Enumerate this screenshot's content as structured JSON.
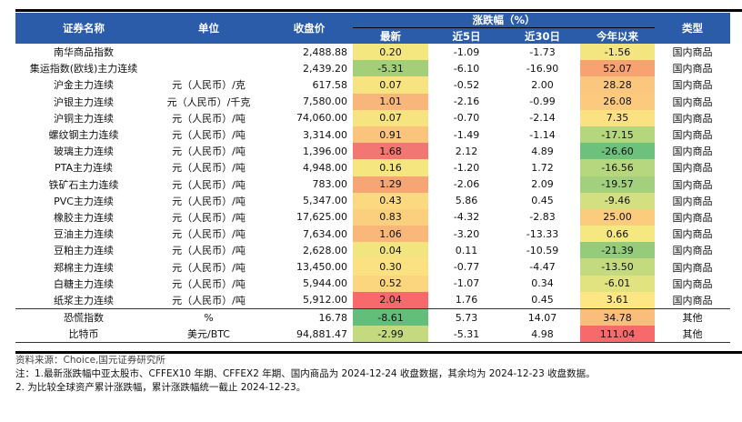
{
  "header": {
    "name": "证券名称",
    "unit": "单位",
    "close": "收盘价",
    "change_group": "涨跌幅（%）",
    "latest": "最新",
    "d5": "近5日",
    "d30": "近30日",
    "ytd": "今年以来",
    "type": "类型"
  },
  "rows": [
    {
      "name": "南华商品指数",
      "unit": "",
      "close": "2,488.88",
      "latest": "0.20",
      "latest_color": "#f5e77f",
      "d5": "-1.09",
      "d30": "-1.73",
      "ytd": "-1.56",
      "ytd_color": "#f3e680",
      "type": "国内商品"
    },
    {
      "name": "集运指数(欧线)主力连续",
      "unit": "",
      "close": "2,439.20",
      "latest": "-5.31",
      "latest_color": "#a3cf78",
      "d5": "-6.10",
      "d30": "-16.90",
      "ytd": "52.07",
      "ytd_color": "#f8a272",
      "type": "国内商品"
    },
    {
      "name": "沪金主力连续",
      "unit": "元（人民币）/克",
      "close": "617.58",
      "latest": "0.07",
      "latest_color": "#f7e480",
      "d5": "-0.52",
      "d30": "2.00",
      "ytd": "28.28",
      "ytd_color": "#fbc77e",
      "type": "国内商品"
    },
    {
      "name": "沪银主力连续",
      "unit": "元（人民币）/千克",
      "close": "7,580.00",
      "latest": "1.01",
      "latest_color": "#f9b67a",
      "d5": "-2.16",
      "d30": "-0.99",
      "ytd": "26.08",
      "ytd_color": "#fbca7e",
      "type": "国内商品"
    },
    {
      "name": "沪铜主力连续",
      "unit": "元（人民币）/吨",
      "close": "74,060.00",
      "latest": "0.07",
      "latest_color": "#f7e480",
      "d5": "-0.70",
      "d30": "-2.14",
      "ytd": "7.35",
      "ytd_color": "#fbe182",
      "type": "国内商品"
    },
    {
      "name": "螺纹钢主力连续",
      "unit": "元（人民币）/吨",
      "close": "3,314.00",
      "latest": "0.91",
      "latest_color": "#fac47c",
      "d5": "-1.49",
      "d30": "-1.14",
      "ytd": "-17.15",
      "ytd_color": "#b4d67d",
      "type": "国内商品"
    },
    {
      "name": "玻璃主力连续",
      "unit": "元（人民币）/吨",
      "close": "1,396.00",
      "latest": "1.68",
      "latest_color": "#f27671",
      "d5": "2.12",
      "d30": "4.89",
      "ytd": "-26.60",
      "ytd_color": "#6ec17c",
      "type": "国内商品"
    },
    {
      "name": "PTA主力连续",
      "unit": "元（人民币）/吨",
      "close": "4,948.00",
      "latest": "0.16",
      "latest_color": "#f6e67f",
      "d5": "-1.20",
      "d30": "1.72",
      "ytd": "-16.56",
      "ytd_color": "#b7d77e",
      "type": "国内商品"
    },
    {
      "name": "铁矿石主力连续",
      "unit": "元（人民币）/吨",
      "close": "783.00",
      "latest": "1.29",
      "latest_color": "#f8a576",
      "d5": "-2.06",
      "d30": "2.09",
      "ytd": "-19.57",
      "ytd_color": "#a2d07c",
      "type": "国内商品"
    },
    {
      "name": "PVC主力连续",
      "unit": "元（人民币）/吨",
      "close": "5,347.00",
      "latest": "0.43",
      "latest_color": "#fbd981",
      "d5": "5.86",
      "d30": "0.45",
      "ytd": "-9.46",
      "ytd_color": "#d3df81",
      "type": "国内商品"
    },
    {
      "name": "橡胶主力连续",
      "unit": "元（人民币）/吨",
      "close": "17,625.00",
      "latest": "0.83",
      "latest_color": "#fad07e",
      "d5": "-4.32",
      "d30": "-2.83",
      "ytd": "25.00",
      "ytd_color": "#fbcb7e",
      "type": "国内商品"
    },
    {
      "name": "豆油主力连续",
      "unit": "元（人民币）/吨",
      "close": "7,634.00",
      "latest": "1.06",
      "latest_color": "#f9b87a",
      "d5": "-3.20",
      "d30": "-13.33",
      "ytd": "0.66",
      "ytd_color": "#f6e881",
      "type": "国内商品"
    },
    {
      "name": "豆粕主力连续",
      "unit": "元（人民币）/吨",
      "close": "2,628.00",
      "latest": "0.04",
      "latest_color": "#f2e57f",
      "d5": "0.11",
      "d30": "-10.59",
      "ytd": "-21.39",
      "ytd_color": "#94cc7c",
      "type": "国内商品"
    },
    {
      "name": "郑棉主力连续",
      "unit": "元（人民币）/吨",
      "close": "13,450.00",
      "latest": "0.30",
      "latest_color": "#fbe181",
      "d5": "-0.77",
      "d30": "-4.47",
      "ytd": "-13.50",
      "ytd_color": "#c3da7f",
      "type": "国内商品"
    },
    {
      "name": "白糖主力连续",
      "unit": "元（人民币）/吨",
      "close": "5,944.00",
      "latest": "0.52",
      "latest_color": "#fbd67f",
      "d5": "-1.07",
      "d30": "0.34",
      "ytd": "-6.01",
      "ytd_color": "#e1e381",
      "type": "国内商品"
    },
    {
      "name": "纸浆主力连续",
      "unit": "元（人民币）/吨",
      "close": "5,912.00",
      "latest": "2.04",
      "latest_color": "#f8696b",
      "d5": "1.76",
      "d30": "0.45",
      "ytd": "3.61",
      "ytd_color": "#fde683",
      "type": "国内商品"
    },
    {
      "name": "恐慌指数",
      "unit": "%",
      "close": "16.78",
      "latest": "-8.61",
      "latest_color": "#63be7b",
      "d5": "5.73",
      "d30": "14.07",
      "ytd": "34.78",
      "ytd_color": "#fbbd7c",
      "type": "其他"
    },
    {
      "name": "比特币",
      "unit": "美元/BTC",
      "close": "94,881.47",
      "latest": "-2.99",
      "latest_color": "#c5d97f",
      "d5": "-5.31",
      "d30": "4.98",
      "ytd": "111.04",
      "ytd_color": "#f8696b",
      "type": "其他"
    }
  ],
  "notes": {
    "source": "资料来源：Choice,国元证券研究所",
    "note1": "注：1.最新涨跌幅中亚太股市、CFFEX10 年期、CFFEX2 年期、国内商品为 2024-12-24 收盘数据，其余均为 2024-12-23 收盘数据。",
    "note2": "2. 为比较全球资产累计涨跌幅，累计涨跌幅统一截止 2024-12-23。"
  },
  "colors": {
    "header_bg": "#2a5caa"
  }
}
